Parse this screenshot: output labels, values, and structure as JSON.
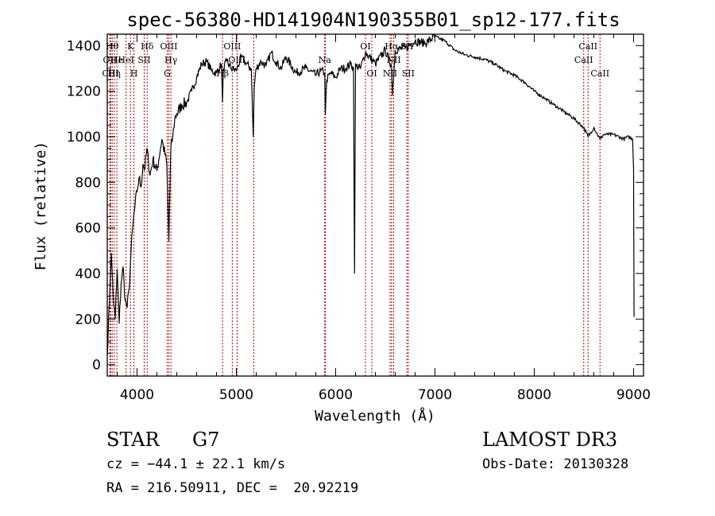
{
  "chart_data": {
    "type": "line",
    "title": "spec-56380-HD141904N190355B01_sp12-177.fits",
    "xlabel": "Wavelength (Å)",
    "ylabel": "Flux (relative)",
    "xlim": [
      3700,
      9100
    ],
    "ylim": [
      -50,
      1450
    ],
    "xticks": [
      4000,
      5000,
      6000,
      7000,
      8000,
      9000
    ],
    "yticks": [
      0,
      200,
      400,
      600,
      800,
      1000,
      1200,
      1400
    ],
    "series": [
      {
        "name": "flux",
        "x": [
          3700,
          3720,
          3740,
          3760,
          3780,
          3800,
          3820,
          3840,
          3860,
          3880,
          3900,
          3920,
          3940,
          3960,
          3980,
          4000,
          4020,
          4040,
          4060,
          4080,
          4100,
          4130,
          4160,
          4200,
          4250,
          4300,
          4320,
          4340,
          4360,
          4380,
          4400,
          4450,
          4500,
          4550,
          4600,
          4650,
          4700,
          4750,
          4800,
          4850,
          4861,
          4870,
          4900,
          4950,
          5000,
          5050,
          5100,
          5150,
          5170,
          5180,
          5200,
          5250,
          5300,
          5350,
          5400,
          5450,
          5500,
          5600,
          5700,
          5800,
          5850,
          5890,
          5896,
          5910,
          5950,
          6000,
          6050,
          6100,
          6150,
          6180,
          6190,
          6200,
          6210,
          6250,
          6300,
          6400,
          6500,
          6563,
          6570,
          6600,
          6700,
          6800,
          6900,
          7000,
          7050,
          7100,
          7200,
          7300,
          7400,
          7500,
          7600,
          7700,
          7800,
          7900,
          8000,
          8100,
          8200,
          8300,
          8400,
          8498,
          8542,
          8600,
          8662,
          8700,
          8800,
          8900,
          8950,
          8990,
          9000,
          9005
        ],
        "y": [
          40,
          260,
          490,
          300,
          200,
          420,
          180,
          360,
          430,
          280,
          250,
          330,
          500,
          620,
          700,
          760,
          820,
          780,
          880,
          860,
          950,
          830,
          900,
          850,
          990,
          880,
          540,
          950,
          1000,
          1080,
          1100,
          1140,
          1150,
          1200,
          1260,
          1320,
          1330,
          1290,
          1280,
          1320,
          1150,
          1300,
          1330,
          1300,
          1290,
          1350,
          1320,
          1300,
          1000,
          1220,
          1300,
          1330,
          1310,
          1370,
          1330,
          1300,
          1350,
          1280,
          1300,
          1270,
          1290,
          1280,
          1100,
          1250,
          1280,
          1260,
          1300,
          1300,
          1320,
          1300,
          400,
          1320,
          1310,
          1300,
          1370,
          1320,
          1380,
          1310,
          1180,
          1380,
          1390,
          1420,
          1410,
          1440,
          1430,
          1420,
          1380,
          1360,
          1350,
          1340,
          1320,
          1290,
          1270,
          1240,
          1200,
          1170,
          1140,
          1110,
          1080,
          1040,
          1000,
          1040,
          990,
          1010,
          1010,
          990,
          1000,
          990,
          860,
          210
        ]
      }
    ],
    "lines": [
      {
        "x": 3727,
        "label": "OII",
        "row": 2
      },
      {
        "x": 3734,
        "label": "CIII",
        "row": 3
      },
      {
        "x": 3750,
        "label": "Hθ",
        "row": 1
      },
      {
        "x": 3770,
        "label": "Hη",
        "row": 3
      },
      {
        "x": 3797,
        "label": "He",
        "row": 2
      },
      {
        "x": 3889,
        "label": "HeI",
        "row": 2
      },
      {
        "x": 3934,
        "label": "K",
        "row": 1
      },
      {
        "x": 3969,
        "label": "H",
        "row": 3
      },
      {
        "x": 4072,
        "label": "SII",
        "row": 2
      },
      {
        "x": 4102,
        "label": "Hδ",
        "row": 1
      },
      {
        "x": 4304,
        "label": "G",
        "row": 3
      },
      {
        "x": 4320,
        "label": "OIII",
        "row": 1
      },
      {
        "x": 4341,
        "label": "Hγ",
        "row": 2
      },
      {
        "x": 4861,
        "label": "Hβ",
        "row": 3
      },
      {
        "x": 4959,
        "label": "OIII",
        "row": 1
      },
      {
        "x": 5007,
        "label": "OIII",
        "row": 2
      },
      {
        "x": 5175,
        "label": "",
        "row": 1
      },
      {
        "x": 5890,
        "label": "Na",
        "row": 2
      },
      {
        "x": 5896,
        "label": "",
        "row": 1
      },
      {
        "x": 6300,
        "label": "OI",
        "row": 1
      },
      {
        "x": 6364,
        "label": "OI",
        "row": 3
      },
      {
        "x": 6548,
        "label": "NII",
        "row": 3
      },
      {
        "x": 6563,
        "label": "Hα",
        "row": 1
      },
      {
        "x": 6584,
        "label": "NII",
        "row": 2
      },
      {
        "x": 6717,
        "label": "SII",
        "row": 1
      },
      {
        "x": 6731,
        "label": "SII",
        "row": 3
      },
      {
        "x": 8498,
        "label": "CaII",
        "row": 2
      },
      {
        "x": 8542,
        "label": "CaII",
        "row": 1
      },
      {
        "x": 8662,
        "label": "CaII",
        "row": 3
      }
    ]
  },
  "info": {
    "class_label": "STAR",
    "subclass_label": "G7",
    "survey": "LAMOST DR3",
    "cz": "cz = −44.1 ± 22.1 km/s",
    "obs_date": "Obs-Date: 20130328",
    "radec": "RA = 216.50911, DEC =  20.92219"
  }
}
